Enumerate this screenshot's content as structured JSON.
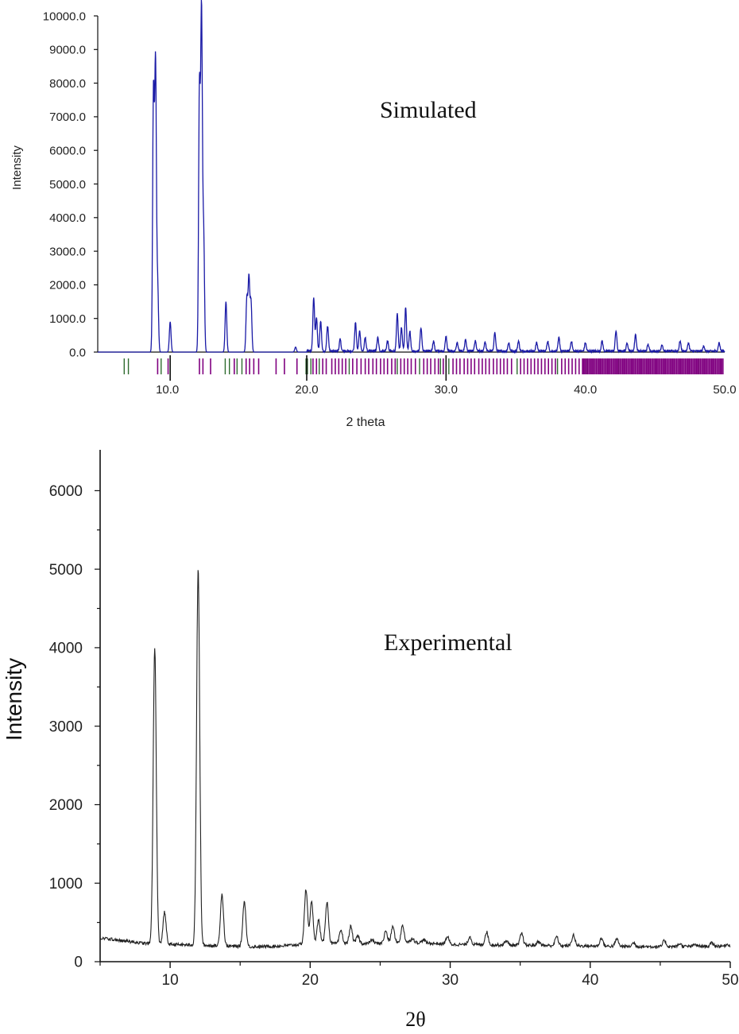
{
  "chart_data": [
    {
      "type": "line",
      "xlabel": "2 theta",
      "ylabel": "Intensity",
      "annotation": "Simulated",
      "xlim": [
        5,
        50
      ],
      "ylim": [
        0,
        10000
      ],
      "x_ticks": [
        "10.0",
        "20.0",
        "30.0",
        "40.0",
        "50.0"
      ],
      "y_ticks": [
        "0.0",
        "1000.0",
        "2000.0",
        "3000.0",
        "4000.0",
        "5000.0",
        "6000.0",
        "7000.0",
        "8000.0",
        "9000.0",
        "10000.0"
      ],
      "line_color": "#1a1aa6",
      "reflection_colors": [
        "#800080",
        "#2e6b2e"
      ],
      "series": [
        {
          "baseline": 0,
          "peaks": [
            {
              "x": 9.0,
              "y": 7700
            },
            {
              "x": 9.15,
              "y": 8500
            },
            {
              "x": 9.3,
              "y": 2000
            },
            {
              "x": 10.2,
              "y": 900
            },
            {
              "x": 12.3,
              "y": 7800
            },
            {
              "x": 12.45,
              "y": 10000
            },
            {
              "x": 12.6,
              "y": 3500
            },
            {
              "x": 14.2,
              "y": 1500
            },
            {
              "x": 15.7,
              "y": 1600
            },
            {
              "x": 15.85,
              "y": 2200
            },
            {
              "x": 16.0,
              "y": 1500
            },
            {
              "x": 19.2,
              "y": 150
            },
            {
              "x": 20.5,
              "y": 1600
            },
            {
              "x": 20.7,
              "y": 1000
            },
            {
              "x": 21.0,
              "y": 900
            },
            {
              "x": 21.5,
              "y": 750
            },
            {
              "x": 22.4,
              "y": 350
            },
            {
              "x": 23.5,
              "y": 850
            },
            {
              "x": 23.8,
              "y": 600
            },
            {
              "x": 24.2,
              "y": 400
            },
            {
              "x": 25.1,
              "y": 400
            },
            {
              "x": 25.8,
              "y": 300
            },
            {
              "x": 26.5,
              "y": 1100
            },
            {
              "x": 26.8,
              "y": 700
            },
            {
              "x": 27.1,
              "y": 1300
            },
            {
              "x": 27.4,
              "y": 600
            },
            {
              "x": 28.2,
              "y": 700
            },
            {
              "x": 29.1,
              "y": 300
            },
            {
              "x": 30.0,
              "y": 450
            },
            {
              "x": 30.8,
              "y": 250
            },
            {
              "x": 31.4,
              "y": 350
            },
            {
              "x": 32.1,
              "y": 300
            },
            {
              "x": 32.8,
              "y": 280
            },
            {
              "x": 33.5,
              "y": 550
            },
            {
              "x": 34.5,
              "y": 250
            },
            {
              "x": 35.2,
              "y": 300
            },
            {
              "x": 36.5,
              "y": 250
            },
            {
              "x": 37.3,
              "y": 300
            },
            {
              "x": 38.1,
              "y": 400
            },
            {
              "x": 39.0,
              "y": 300
            },
            {
              "x": 40.0,
              "y": 250
            },
            {
              "x": 41.2,
              "y": 300
            },
            {
              "x": 42.2,
              "y": 600
            },
            {
              "x": 43.0,
              "y": 250
            },
            {
              "x": 43.6,
              "y": 500
            },
            {
              "x": 44.5,
              "y": 200
            },
            {
              "x": 45.5,
              "y": 200
            },
            {
              "x": 46.8,
              "y": 300
            },
            {
              "x": 47.4,
              "y": 250
            },
            {
              "x": 48.5,
              "y": 150
            },
            {
              "x": 49.6,
              "y": 250
            }
          ]
        }
      ],
      "reflections": {
        "green": [
          6.9,
          7.2,
          9.55,
          10.2,
          14.15,
          14.45,
          15.0,
          15.35,
          19.95,
          20.05,
          20.3,
          20.9,
          23.05,
          26.5,
          28.1,
          29.6,
          30.2,
          35.1,
          38.0,
          40.1,
          42.4,
          48.1
        ],
        "purple": [
          9.3,
          10.05,
          12.3,
          12.55,
          13.1,
          14.8,
          15.65,
          15.9,
          16.2,
          16.55,
          17.8,
          18.4,
          19.3,
          20.45,
          20.7,
          21.15,
          21.4,
          21.8,
          22.05,
          22.3,
          22.55,
          22.8,
          23.3,
          23.6,
          23.9,
          24.2,
          24.45,
          24.75,
          25.0,
          25.3,
          25.55,
          25.8,
          26.1,
          26.35,
          26.75,
          27.0,
          27.25,
          27.5,
          27.8,
          28.4,
          28.65,
          28.9,
          29.2,
          29.45,
          29.8,
          30.5,
          30.75,
          31.0,
          31.3,
          31.55,
          31.8,
          32.05,
          32.35,
          32.6,
          32.85,
          33.1,
          33.4,
          33.65,
          33.9,
          34.15,
          34.4,
          34.7,
          35.35,
          35.6,
          35.85,
          36.1,
          36.35,
          36.6,
          36.85,
          37.1,
          37.35,
          37.6,
          37.85,
          38.3,
          38.55,
          38.8,
          39.05,
          39.3,
          39.55,
          39.8
        ]
      },
      "dense_reflection_band": [
        39.8,
        49.9
      ]
    },
    {
      "type": "line",
      "xlabel": "2θ",
      "ylabel": "Intensity",
      "annotation": "Experimental",
      "xlim": [
        5,
        50
      ],
      "ylim": [
        0,
        6500
      ],
      "x_ticks": [
        "10",
        "20",
        "30",
        "40",
        "50"
      ],
      "y_ticks": [
        "0",
        "1000",
        "2000",
        "3000",
        "4000",
        "5000",
        "6000"
      ],
      "line_color": "#222222",
      "series": [
        {
          "baseline_points": [
            [
              5,
              300
            ],
            [
              7,
              260
            ],
            [
              8.3,
              230
            ],
            [
              10,
              220
            ],
            [
              11,
              215
            ],
            [
              13,
              205
            ],
            [
              16,
              190
            ],
            [
              18,
              200
            ],
            [
              20,
              230
            ],
            [
              24,
              230
            ],
            [
              27,
              250
            ],
            [
              30,
              220
            ],
            [
              35,
              210
            ],
            [
              40,
              200
            ],
            [
              45,
              190
            ],
            [
              50,
              200
            ]
          ],
          "peaks": [
            {
              "x": 8.9,
              "y": 4000
            },
            {
              "x": 9.6,
              "y": 630
            },
            {
              "x": 12.0,
              "y": 5020
            },
            {
              "x": 13.7,
              "y": 860
            },
            {
              "x": 15.3,
              "y": 770
            },
            {
              "x": 19.7,
              "y": 920
            },
            {
              "x": 20.1,
              "y": 760
            },
            {
              "x": 20.6,
              "y": 530
            },
            {
              "x": 21.2,
              "y": 760
            },
            {
              "x": 22.2,
              "y": 400
            },
            {
              "x": 22.9,
              "y": 450
            },
            {
              "x": 23.4,
              "y": 330
            },
            {
              "x": 24.4,
              "y": 280
            },
            {
              "x": 25.4,
              "y": 390
            },
            {
              "x": 25.9,
              "y": 450
            },
            {
              "x": 26.6,
              "y": 460
            },
            {
              "x": 27.3,
              "y": 300
            },
            {
              "x": 28.1,
              "y": 280
            },
            {
              "x": 29.8,
              "y": 320
            },
            {
              "x": 31.4,
              "y": 320
            },
            {
              "x": 32.6,
              "y": 380
            },
            {
              "x": 34.0,
              "y": 270
            },
            {
              "x": 35.1,
              "y": 360
            },
            {
              "x": 36.3,
              "y": 260
            },
            {
              "x": 37.6,
              "y": 320
            },
            {
              "x": 38.8,
              "y": 340
            },
            {
              "x": 40.8,
              "y": 300
            },
            {
              "x": 41.9,
              "y": 290
            },
            {
              "x": 43.1,
              "y": 240
            },
            {
              "x": 45.3,
              "y": 270
            },
            {
              "x": 46.4,
              "y": 230
            },
            {
              "x": 47.5,
              "y": 220
            },
            {
              "x": 48.7,
              "y": 240
            },
            {
              "x": 49.8,
              "y": 220
            }
          ]
        }
      ]
    }
  ]
}
